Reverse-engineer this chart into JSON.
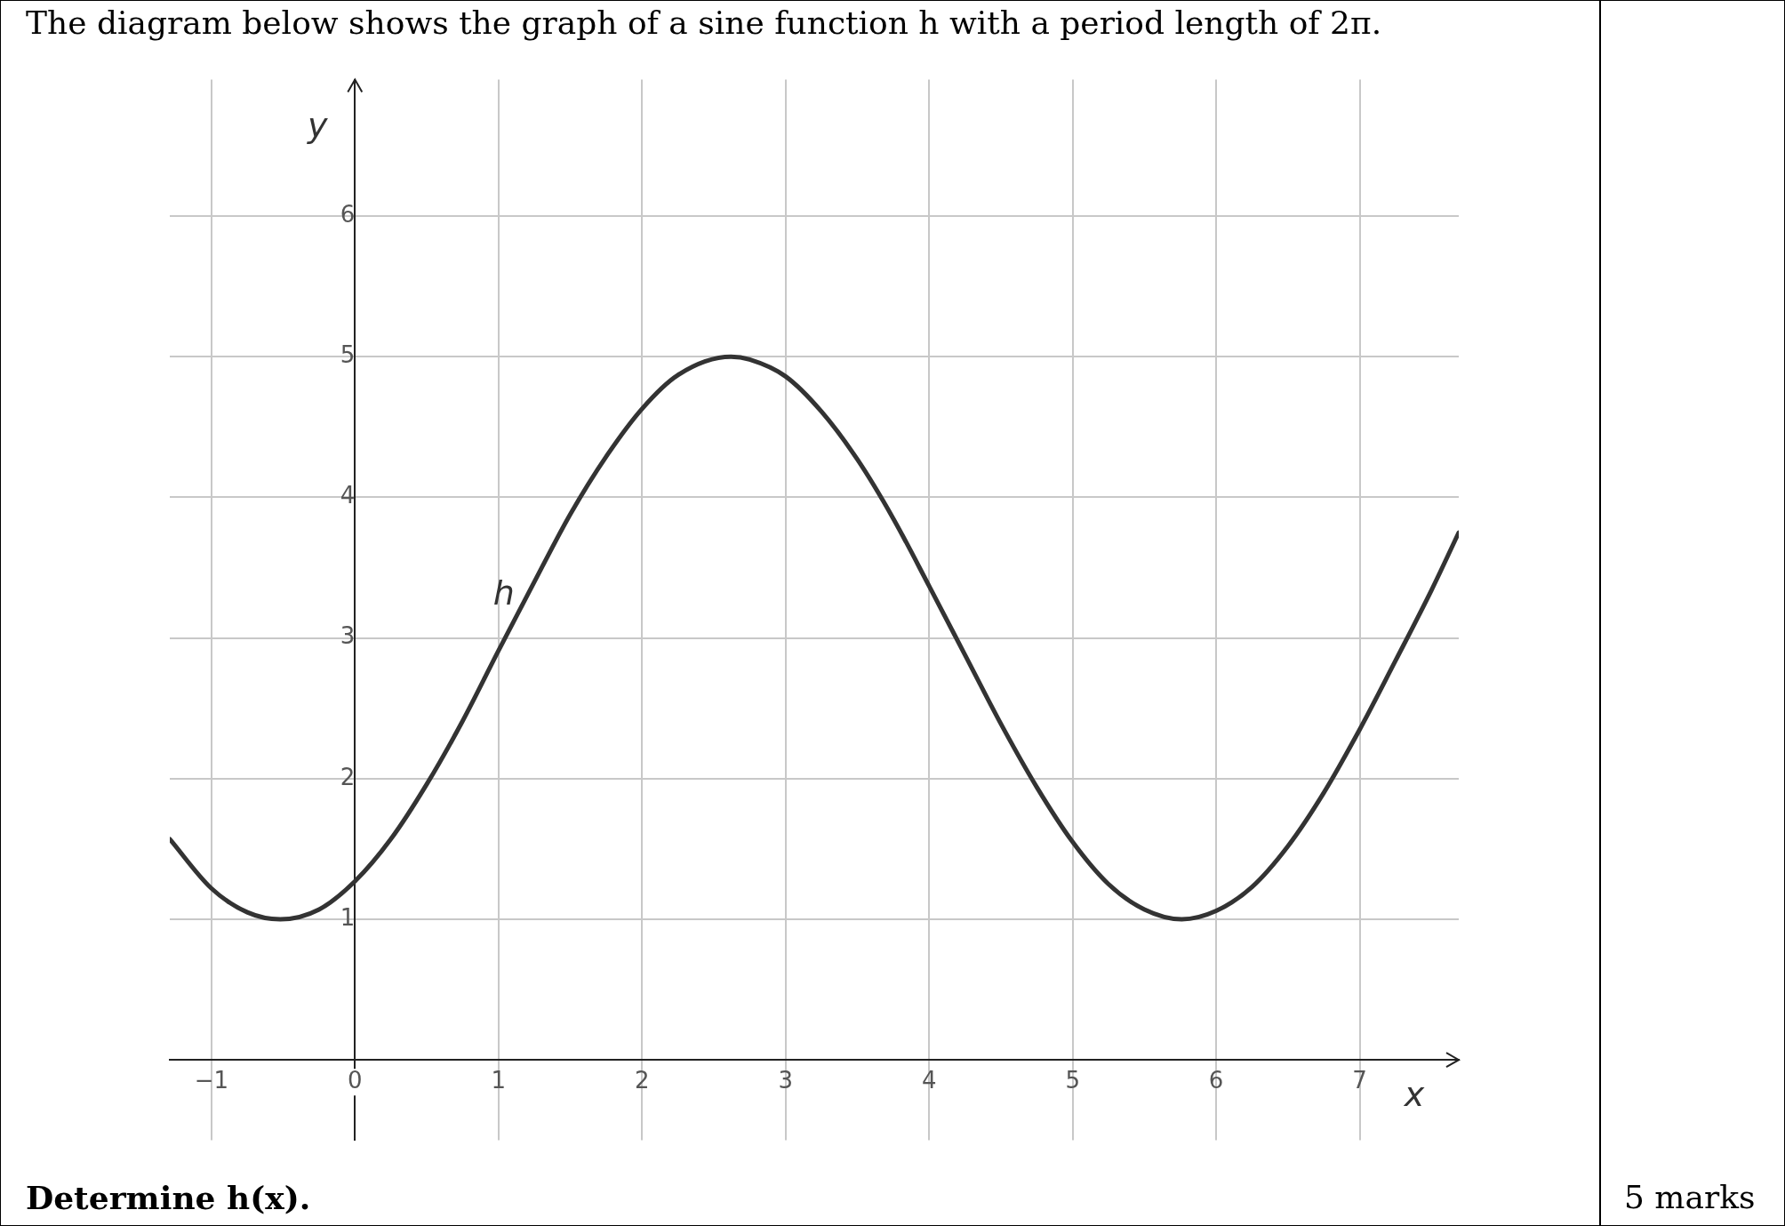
{
  "chart_data": {
    "type": "line",
    "title": "The diagram below shows the graph of a sine function h with a period length of 2π.",
    "xlabel": "x",
    "ylabel": "y",
    "annotations": [
      "Determine h(x).",
      "5 marks"
    ],
    "x": [
      -1.29,
      -1.0,
      -0.75,
      -0.52,
      -0.25,
      0,
      0.25,
      0.5,
      0.75,
      1.0,
      1.25,
      1.5,
      1.75,
      2.0,
      2.25,
      2.62,
      2.75,
      3.0,
      3.25,
      3.5,
      3.75,
      4.0,
      4.25,
      4.5,
      4.75,
      5.0,
      5.25,
      5.5,
      5.76,
      6.0,
      6.25,
      6.5,
      6.75,
      7.0,
      7.25,
      7.5,
      7.69
    ],
    "series": [
      {
        "name": "h",
        "color": "#333333",
        "values": [
          1.57,
          1.22,
          1.05,
          1.0,
          1.07,
          1.27,
          1.57,
          1.96,
          2.41,
          2.91,
          3.4,
          3.88,
          4.29,
          4.63,
          4.87,
          5.0,
          4.98,
          4.86,
          4.61,
          4.27,
          3.85,
          3.37,
          2.88,
          2.39,
          1.94,
          1.55,
          1.25,
          1.07,
          1.0,
          1.06,
          1.23,
          1.52,
          1.9,
          2.35,
          2.84,
          3.34,
          3.75
        ]
      }
    ],
    "xlim": [
      -1.29,
      7.69
    ],
    "ylim": [
      -0.57,
      6.97
    ],
    "xticks": [
      -1,
      0,
      1,
      2,
      3,
      4,
      5,
      6,
      7
    ],
    "yticks": [
      1,
      2,
      3,
      4,
      5,
      6
    ],
    "grid": true,
    "legend": false,
    "marker": "none",
    "line_style": "solid"
  }
}
